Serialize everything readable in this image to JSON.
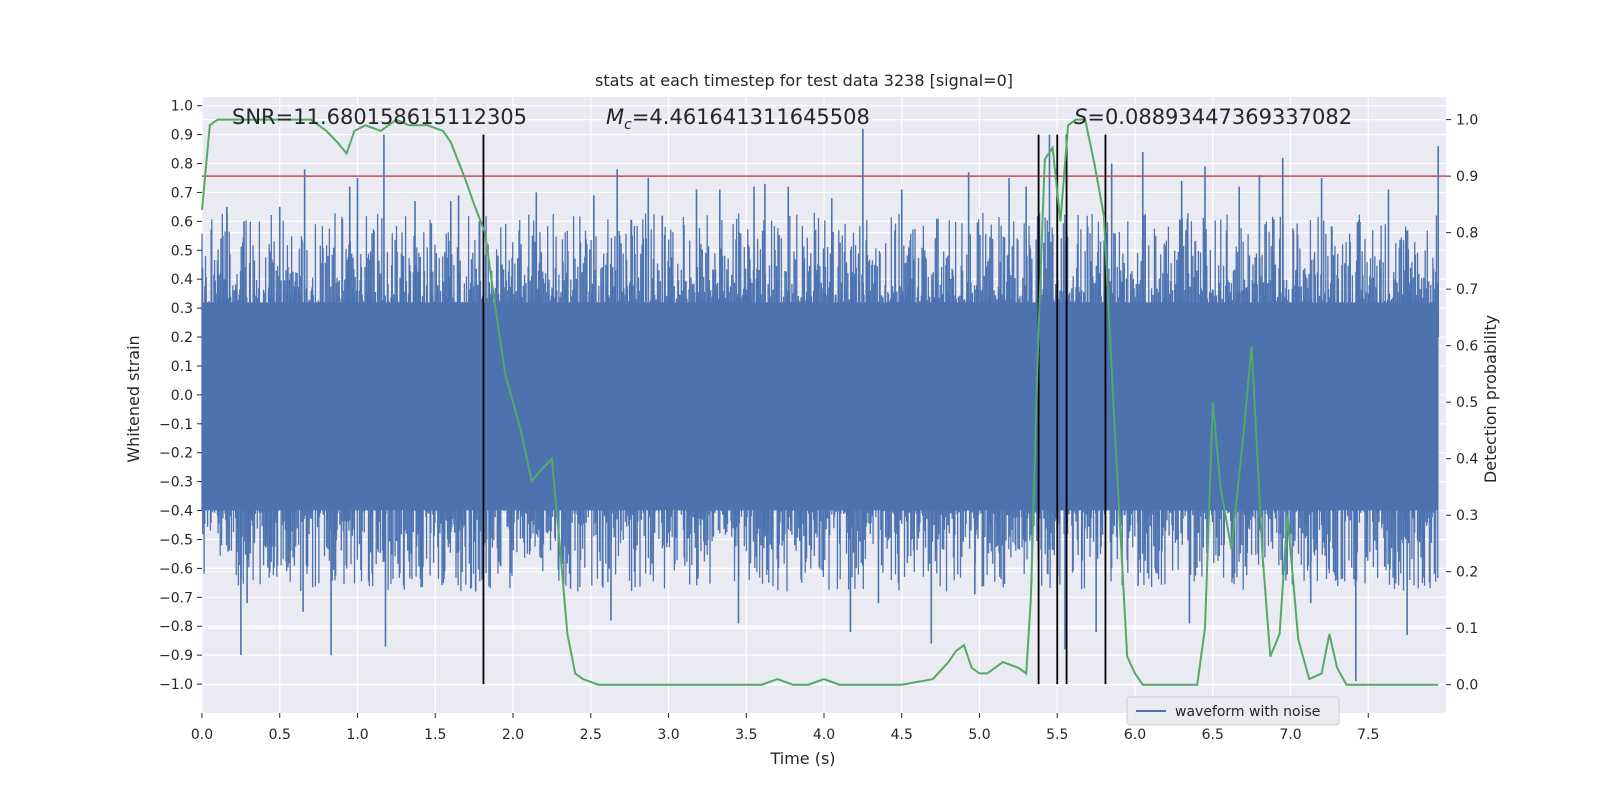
{
  "chart_data": {
    "type": "line",
    "title": "stats at each timestep for test data 3238 [signal=0]",
    "xlabel": "Time (s)",
    "ylabel": "Whitened strain",
    "y2label": "Detection probability",
    "xlim": [
      0,
      8
    ],
    "ylim": [
      -1.1,
      1.03
    ],
    "y2lim": [
      -0.05,
      1.04
    ],
    "x_ticks": [
      "0.0",
      "0.5",
      "1.0",
      "1.5",
      "2.0",
      "2.5",
      "3.0",
      "3.5",
      "4.0",
      "4.5",
      "5.0",
      "5.5",
      "6.0",
      "6.5",
      "7.0",
      "7.5"
    ],
    "y_ticks": [
      "1.0",
      "0.9",
      "0.8",
      "0.7",
      "0.6",
      "0.5",
      "0.4",
      "0.3",
      "0.2",
      "0.1",
      "0.0",
      "−0.1",
      "−0.2",
      "−0.3",
      "−0.4",
      "−0.5",
      "−0.6",
      "−0.7",
      "−0.8",
      "−0.9",
      "−1.0"
    ],
    "y2_ticks": [
      "1.0",
      "0.9",
      "0.8",
      "0.7",
      "0.6",
      "0.5",
      "0.4",
      "0.3",
      "0.2",
      "0.1",
      "0.0"
    ],
    "annotations": {
      "snr": "SNR=11.680158615112305",
      "mc_symbol": "M",
      "mc_sub": "c",
      "mc_value": "=4.461641311645508",
      "s_symbol": "S",
      "s_value": "=0.08893447369337082"
    },
    "threshold": 0.9,
    "vlines": [
      1.81,
      5.38,
      5.5,
      5.56,
      5.81
    ],
    "series": [
      {
        "name": "waveform with noise",
        "kind": "noise",
        "color": "#4c72b0",
        "spikes_positive": [
          [
            0.16,
            0.65
          ],
          [
            0.27,
            0.6
          ],
          [
            0.5,
            0.65
          ],
          [
            0.66,
            0.78
          ],
          [
            0.95,
            0.72
          ],
          [
            1.0,
            0.75
          ],
          [
            1.17,
            0.9
          ],
          [
            1.37,
            0.67
          ],
          [
            1.6,
            0.67
          ],
          [
            1.65,
            0.69
          ],
          [
            2.15,
            0.7
          ],
          [
            2.52,
            0.69
          ],
          [
            2.67,
            0.78
          ],
          [
            2.87,
            0.75
          ],
          [
            2.96,
            0.62
          ],
          [
            3.18,
            0.71
          ],
          [
            3.33,
            0.71
          ],
          [
            3.55,
            0.72
          ],
          [
            3.62,
            0.73
          ],
          [
            3.77,
            0.72
          ],
          [
            4.05,
            0.68
          ],
          [
            4.25,
            0.92
          ],
          [
            4.5,
            0.71
          ],
          [
            4.93,
            0.77
          ],
          [
            5.19,
            0.75
          ],
          [
            5.3,
            0.72
          ],
          [
            5.45,
            0.9
          ],
          [
            5.85,
            0.8
          ],
          [
            6.05,
            0.84
          ],
          [
            6.3,
            0.74
          ],
          [
            6.45,
            0.79
          ],
          [
            6.67,
            0.72
          ],
          [
            6.8,
            0.76
          ],
          [
            6.95,
            0.82
          ],
          [
            7.2,
            0.75
          ],
          [
            7.63,
            0.71
          ],
          [
            7.95,
            0.86
          ]
        ],
        "spikes_negative": [
          [
            0.25,
            -0.9
          ],
          [
            0.29,
            -0.72
          ],
          [
            0.65,
            -0.75
          ],
          [
            0.83,
            -0.9
          ],
          [
            1.18,
            -0.87
          ],
          [
            1.76,
            -0.68
          ],
          [
            2.37,
            -0.67
          ],
          [
            2.63,
            -0.78
          ],
          [
            3.45,
            -0.79
          ],
          [
            4.17,
            -0.82
          ],
          [
            4.35,
            -0.72
          ],
          [
            4.69,
            -0.86
          ],
          [
            4.97,
            -0.69
          ],
          [
            5.55,
            -0.88
          ],
          [
            5.75,
            -0.82
          ],
          [
            6.02,
            -0.66
          ],
          [
            6.35,
            -0.79
          ],
          [
            7.13,
            -0.72
          ],
          [
            7.42,
            -0.99
          ],
          [
            7.75,
            -0.83
          ]
        ]
      },
      {
        "name": "",
        "kind": "probability",
        "color": "#55a868",
        "x": [
          0.0,
          0.05,
          0.1,
          0.2,
          0.3,
          0.4,
          0.5,
          0.6,
          0.7,
          0.75,
          0.8,
          0.87,
          0.93,
          0.98,
          1.05,
          1.15,
          1.25,
          1.33,
          1.45,
          1.55,
          1.6,
          1.7,
          1.75,
          1.82,
          1.88,
          1.95,
          2.0,
          2.05,
          2.12,
          2.18,
          2.25,
          2.3,
          2.35,
          2.4,
          2.45,
          2.55,
          2.7,
          2.9,
          3.1,
          3.3,
          3.5,
          3.6,
          3.7,
          3.8,
          3.9,
          4.0,
          4.1,
          4.3,
          4.5,
          4.7,
          4.8,
          4.85,
          4.9,
          4.95,
          5.0,
          5.05,
          5.1,
          5.15,
          5.25,
          5.3,
          5.33,
          5.38,
          5.42,
          5.47,
          5.52,
          5.57,
          5.62,
          5.68,
          5.74,
          5.8,
          5.87,
          5.95,
          6.0,
          6.05,
          6.1,
          6.2,
          6.35,
          6.4,
          6.45,
          6.5,
          6.55,
          6.62,
          6.7,
          6.75,
          6.82,
          6.87,
          6.93,
          6.98,
          7.05,
          7.12,
          7.2,
          7.25,
          7.3,
          7.36,
          7.42,
          7.5,
          7.6,
          7.8,
          7.95
        ],
        "y": [
          0.84,
          0.99,
          1.0,
          1.0,
          1.0,
          1.0,
          1.0,
          1.0,
          1.0,
          0.99,
          0.98,
          0.96,
          0.94,
          0.98,
          0.99,
          0.98,
          1.0,
          0.99,
          0.99,
          0.98,
          0.96,
          0.89,
          0.85,
          0.8,
          0.68,
          0.55,
          0.5,
          0.45,
          0.36,
          0.38,
          0.4,
          0.25,
          0.09,
          0.02,
          0.01,
          0.0,
          0.0,
          0.0,
          0.0,
          0.0,
          0.0,
          0.0,
          0.01,
          0.0,
          0.0,
          0.01,
          0.0,
          0.0,
          0.0,
          0.01,
          0.04,
          0.06,
          0.07,
          0.03,
          0.02,
          0.02,
          0.03,
          0.04,
          0.03,
          0.02,
          0.15,
          0.63,
          0.93,
          0.95,
          0.82,
          0.99,
          1.0,
          1.0,
          0.92,
          0.83,
          0.45,
          0.05,
          0.02,
          0.0,
          0.0,
          0.0,
          0.0,
          0.0,
          0.1,
          0.5,
          0.35,
          0.24,
          0.45,
          0.6,
          0.23,
          0.05,
          0.09,
          0.3,
          0.08,
          0.01,
          0.02,
          0.09,
          0.03,
          0.0,
          0.0,
          0.0,
          0.0,
          0.0,
          0.0
        ]
      },
      {
        "name": "",
        "kind": "threshold",
        "color": "#c44e52"
      }
    ],
    "legend": {
      "placement": "lower-right",
      "entries": [
        "waveform with noise"
      ]
    },
    "grid": true
  }
}
